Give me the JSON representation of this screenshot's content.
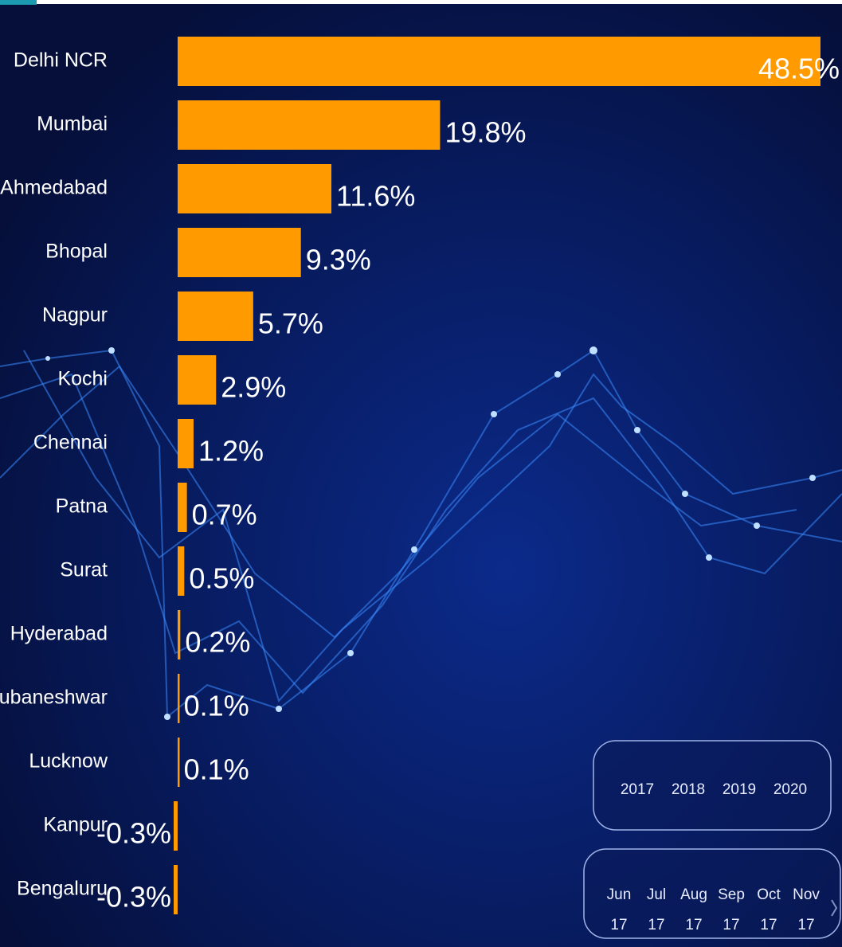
{
  "chart_data": {
    "type": "bar",
    "orientation": "horizontal",
    "color": "#ff9a00",
    "categories": [
      "Delhi NCR",
      "Mumbai",
      "Ahmedabad",
      "Bhopal",
      "Nagpur",
      "Kochi",
      "Chennai",
      "Patna",
      "Surat",
      "Hyderabad",
      "Bhubaneshwar",
      "Lucknow",
      "Kanpur",
      "Bengaluru"
    ],
    "values": [
      48.5,
      19.8,
      11.6,
      9.3,
      5.7,
      2.9,
      1.2,
      0.7,
      0.5,
      0.2,
      0.1,
      0.1,
      -0.3,
      -0.3
    ],
    "value_labels": [
      "48.5%",
      "19.8%",
      "11.6%",
      "9.3%",
      "5.7%",
      "2.9%",
      "1.2%",
      "0.7%",
      "0.5%",
      "0.2%",
      "0.1%",
      "0.1%",
      "-0.3%",
      "-0.3%"
    ]
  },
  "year_slicer": [
    "2017",
    "2018",
    "2019",
    "2020"
  ],
  "month_slicer": [
    [
      "Jun",
      "17"
    ],
    [
      "Jul",
      "17"
    ],
    [
      "Aug",
      "17"
    ],
    [
      "Sep",
      "17"
    ],
    [
      "Oct",
      "17"
    ],
    [
      "Nov",
      "17"
    ]
  ]
}
